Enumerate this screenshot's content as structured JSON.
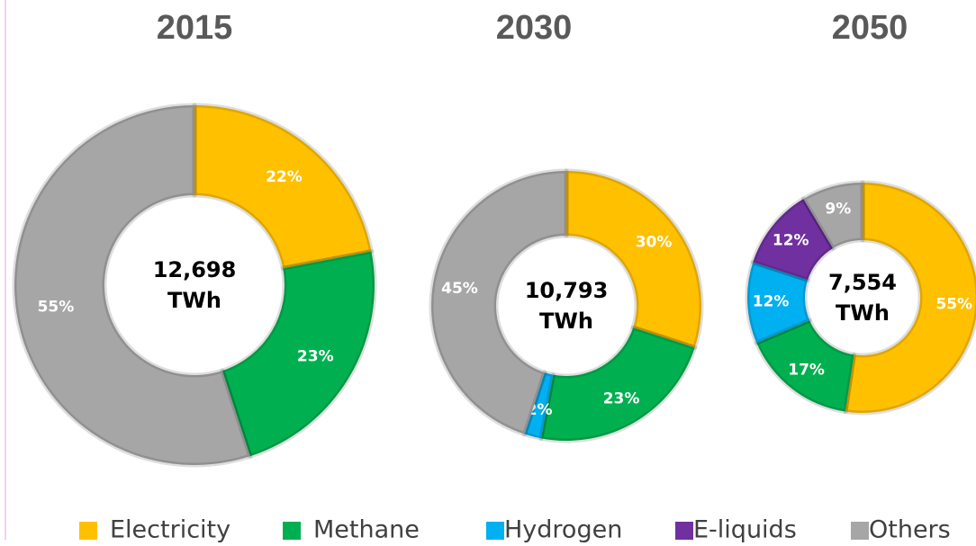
{
  "chart_data": [
    {
      "type": "donut",
      "title": "2015",
      "center_text": "12,698",
      "center_unit": "TWh",
      "categories": [
        "Electricity",
        "Methane",
        "Others"
      ],
      "colors": [
        "#ffc000",
        "#00b050",
        "#a6a6a6"
      ],
      "values": [
        22,
        23,
        55
      ],
      "value_labels": [
        "22%",
        "23%",
        "55%"
      ]
    },
    {
      "type": "donut",
      "title": "2030",
      "center_text": "10,793",
      "center_unit": "TWh",
      "categories": [
        "Electricity",
        "Methane",
        "Hydrogen",
        "Others"
      ],
      "colors": [
        "#ffc000",
        "#00b050",
        "#00b0f0",
        "#a6a6a6"
      ],
      "values": [
        30,
        23,
        2,
        45
      ],
      "value_labels": [
        "30%",
        "23%",
        "2%",
        "45%"
      ]
    },
    {
      "type": "donut",
      "title": "2050",
      "center_text": "7,554",
      "center_unit": "TWh",
      "categories": [
        "Electricity",
        "Methane",
        "Hydrogen",
        "E-liquids",
        "Others"
      ],
      "colors": [
        "#ffc000",
        "#00b050",
        "#00b0f0",
        "#7030a0",
        "#a6a6a6"
      ],
      "values": [
        55,
        17,
        12,
        12,
        9
      ],
      "value_labels": [
        "55%",
        "17%",
        "12%",
        "12%",
        "9%"
      ]
    }
  ],
  "legend": [
    {
      "name": "Electricity",
      "color": "#ffc000"
    },
    {
      "name": "Methane",
      "color": "#00b050"
    },
    {
      "name": "Hydrogen",
      "color": "#00b0f0"
    },
    {
      "name": "E-liquids",
      "color": "#7030a0"
    },
    {
      "name": "Others",
      "color": "#a6a6a6"
    }
  ]
}
